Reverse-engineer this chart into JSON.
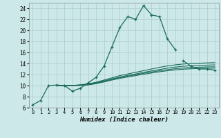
{
  "xlabel": "Humidex (Indice chaleur)",
  "background_color": "#cce8e8",
  "grid_color": "#aacccc",
  "line_color": "#1a6b5a",
  "xlim": [
    -0.5,
    23.5
  ],
  "ylim": [
    6,
    25
  ],
  "xticks": [
    0,
    1,
    2,
    3,
    4,
    5,
    6,
    7,
    8,
    9,
    10,
    11,
    12,
    13,
    14,
    15,
    16,
    17,
    18,
    19,
    20,
    21,
    22,
    23
  ],
  "yticks": [
    6,
    8,
    10,
    12,
    14,
    16,
    18,
    20,
    22,
    24
  ],
  "series": [
    {
      "x": [
        0,
        1,
        2,
        3,
        4,
        5,
        6,
        7,
        8,
        9,
        10,
        11,
        12,
        13,
        14,
        15,
        16,
        17,
        18,
        19,
        20,
        21,
        22,
        23
      ],
      "y": [
        6.5,
        7.3,
        10.0,
        10.1,
        10.0,
        9.0,
        9.5,
        10.5,
        11.5,
        13.5,
        17.0,
        20.5,
        22.5,
        22.0,
        24.5,
        22.8,
        22.5,
        18.5,
        16.5,
        null,
        null,
        null,
        null,
        null
      ],
      "marker": true
    },
    {
      "x": [
        19,
        20,
        21,
        22,
        23
      ],
      "y": [
        14.5,
        13.5,
        13.0,
        13.0,
        12.8
      ],
      "marker": true
    },
    {
      "x": [
        3,
        4,
        5,
        6,
        7,
        8,
        9,
        10,
        11,
        12,
        13,
        14,
        15,
        16,
        17,
        18,
        19,
        20,
        21,
        22,
        23
      ],
      "y": [
        10.0,
        10.0,
        10.0,
        10.15,
        10.3,
        10.6,
        11.0,
        11.4,
        11.8,
        12.1,
        12.4,
        12.7,
        13.0,
        13.3,
        13.55,
        13.75,
        13.9,
        14.0,
        14.05,
        14.1,
        14.15
      ],
      "marker": false
    },
    {
      "x": [
        3,
        4,
        5,
        6,
        7,
        8,
        9,
        10,
        11,
        12,
        13,
        14,
        15,
        16,
        17,
        18,
        19,
        20,
        21,
        22,
        23
      ],
      "y": [
        10.0,
        10.0,
        10.0,
        10.1,
        10.25,
        10.5,
        10.85,
        11.2,
        11.55,
        11.85,
        12.1,
        12.4,
        12.65,
        12.9,
        13.15,
        13.35,
        13.5,
        13.6,
        13.65,
        13.7,
        13.75
      ],
      "marker": false
    },
    {
      "x": [
        3,
        4,
        5,
        6,
        7,
        8,
        9,
        10,
        11,
        12,
        13,
        14,
        15,
        16,
        17,
        18,
        19,
        20,
        21,
        22,
        23
      ],
      "y": [
        10.0,
        10.0,
        10.0,
        10.05,
        10.18,
        10.42,
        10.75,
        11.1,
        11.42,
        11.7,
        11.95,
        12.22,
        12.45,
        12.68,
        12.88,
        13.05,
        13.18,
        13.27,
        13.32,
        13.37,
        13.4
      ],
      "marker": false
    },
    {
      "x": [
        3,
        4,
        5,
        6,
        7,
        8,
        9,
        10,
        11,
        12,
        13,
        14,
        15,
        16,
        17,
        18,
        19,
        20,
        21,
        22,
        23
      ],
      "y": [
        10.0,
        10.0,
        10.0,
        10.02,
        10.12,
        10.34,
        10.65,
        11.0,
        11.3,
        11.56,
        11.8,
        12.05,
        12.28,
        12.5,
        12.68,
        12.84,
        12.96,
        13.04,
        13.09,
        13.13,
        13.16
      ],
      "marker": false
    }
  ]
}
